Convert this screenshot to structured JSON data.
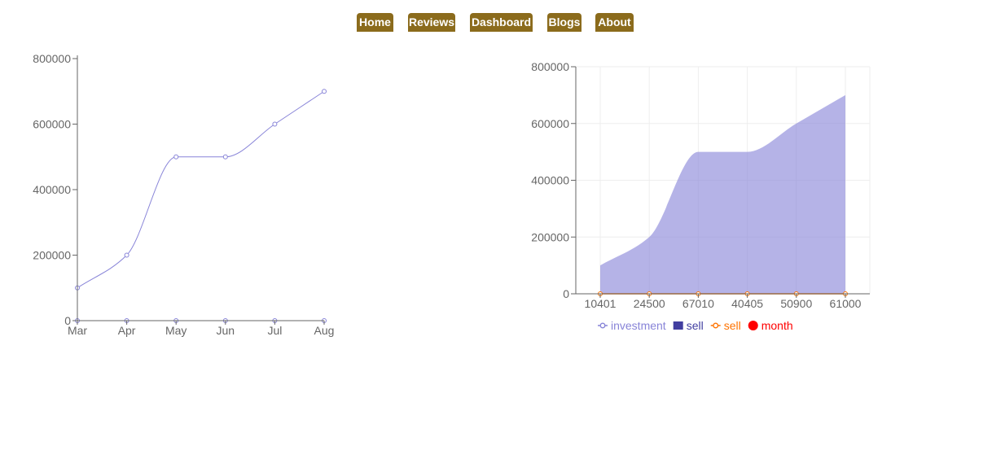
{
  "nav": {
    "items": [
      {
        "label": "Home",
        "color": "#8b6b1c"
      },
      {
        "label": "Reviews",
        "color": "#8b6b1c"
      },
      {
        "label": "Dashboard",
        "color": "#8b6b1c"
      },
      {
        "label": "Blogs",
        "color": "#8b6b1c"
      },
      {
        "label": "About",
        "color": "#8b6b1c"
      }
    ]
  },
  "chart_data": [
    {
      "type": "line",
      "categories": [
        "Mar",
        "Apr",
        "May",
        "Jun",
        "Jul",
        "Aug"
      ],
      "ylim": [
        0,
        800000
      ],
      "yticks": [
        "0",
        "200000",
        "400000",
        "600000",
        "800000"
      ],
      "grid": false,
      "series": [
        {
          "values": [
            100000,
            200000,
            500000,
            500000,
            600000,
            700000
          ],
          "color": "#8884d8"
        },
        {
          "values": [
            0,
            0,
            0,
            0,
            0,
            0
          ],
          "color": "#8884d8"
        }
      ]
    },
    {
      "type": "area",
      "categories": [
        "10401",
        "24500",
        "67010",
        "40405",
        "50900",
        "61000"
      ],
      "ylim": [
        0,
        800000
      ],
      "yticks": [
        "0",
        "200000",
        "400000",
        "600000",
        "800000"
      ],
      "grid": true,
      "legend_position": "bottom",
      "series": [
        {
          "name": "investment",
          "values": [
            100000,
            200000,
            500000,
            500000,
            600000,
            700000
          ],
          "color": "#8884d8"
        },
        {
          "name": "sell",
          "values": [
            0,
            0,
            0,
            0,
            0,
            0
          ],
          "color": "#ff7300"
        }
      ],
      "legend": [
        {
          "label": "investment",
          "color": "#8884d8",
          "icon": "line-circle"
        },
        {
          "label": "sell",
          "color": "#413ea0",
          "icon": "square"
        },
        {
          "label": "sell",
          "color": "#ff7300",
          "icon": "line-circle"
        },
        {
          "label": "month",
          "color": "#ff0000",
          "icon": "circle"
        }
      ]
    }
  ]
}
